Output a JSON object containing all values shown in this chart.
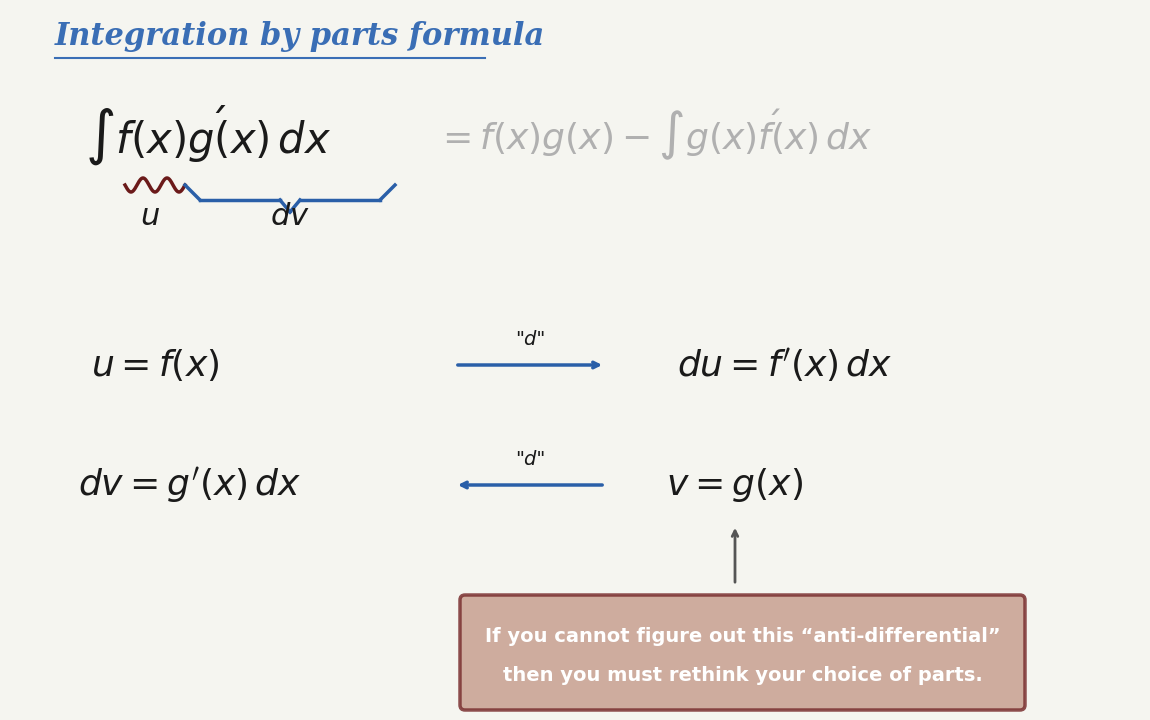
{
  "title": "Integration by parts formula",
  "title_color": "#3a6eb5",
  "title_fontsize": 22,
  "bg_color": "#f0f0f0",
  "main_formula_left": "$\\int f(x)g'(x)\\,dx$",
  "main_formula_right": "$= f(x)g(x) - \\int g(x)f'(x)\\,dx$",
  "label_u": "$u$",
  "label_dv": "$dv$",
  "eq1_left": "$u = f(x)$",
  "eq1_right": "$du = f'(x)\\,dx$",
  "eq2_left": "$dv = g'(x)\\,dx$",
  "eq2_right": "$v = g(x)$",
  "arrow_label_d": "\"d\"",
  "box_text1": "If you cannot figure out this “anti-differential”",
  "box_text2": "then you must rethink your choice of parts.",
  "box_bg": "#7a3030",
  "box_border": "#7a3030",
  "box_text_color": "white",
  "arrow_color": "#2a5fa8",
  "underbrace_u_color": "#6b1a1a",
  "underbrace_dv_color": "#2a5fa8"
}
